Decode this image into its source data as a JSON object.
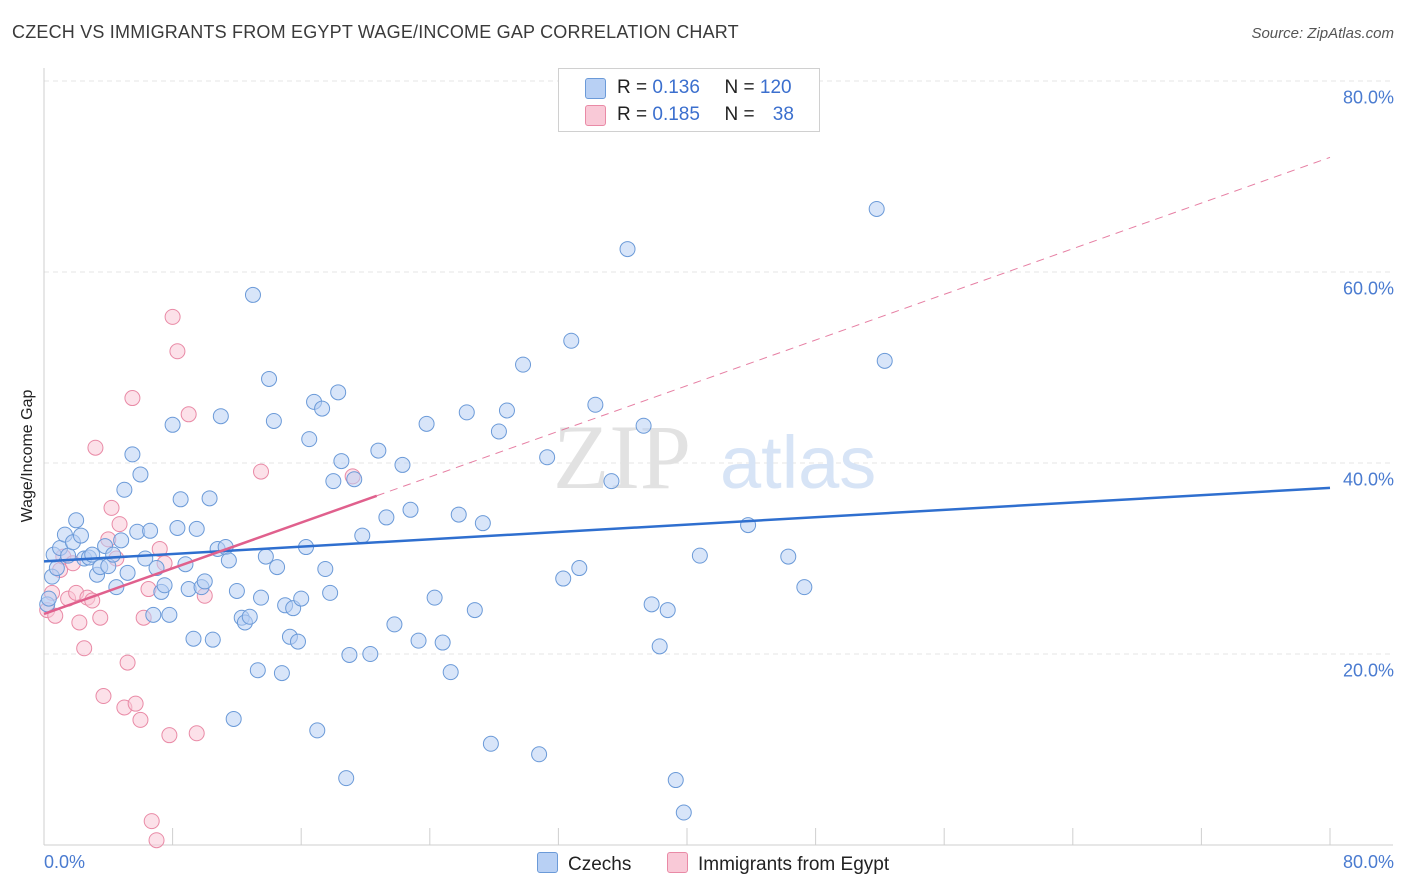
{
  "title": "CZECH VS IMMIGRANTS FROM EGYPT WAGE/INCOME GAP CORRELATION CHART",
  "source": "Source: ZipAtlas.com",
  "colors": {
    "blue_fill": "#b8d0f4",
    "blue_stroke": "#6b9ad8",
    "blue_line": "#2f6fcf",
    "pink_fill": "#f9c9d7",
    "pink_stroke": "#e98aa6",
    "pink_line": "#e0608d",
    "value_text": "#3b6fce",
    "grid": "#e4e4e4"
  },
  "legend": {
    "rows": [
      {
        "r_label": "R =",
        "r_value": "0.136",
        "n_label": "N =",
        "n_value": "120"
      },
      {
        "r_label": "R =",
        "r_value": "0.185",
        "n_label": "N =",
        "n_value": "38"
      }
    ]
  },
  "bottom_legend": [
    "Czechs",
    "Immigrants from Egypt"
  ],
  "watermark": {
    "zip": "ZIP",
    "atlas": "atlas"
  },
  "chart_data": {
    "type": "scatter",
    "title": "CZECH VS IMMIGRANTS FROM EGYPT WAGE/INCOME GAP CORRELATION CHART",
    "xlabel": "",
    "ylabel": "Wage/Income Gap",
    "xlim": [
      0,
      80
    ],
    "ylim": [
      0,
      82
    ],
    "x_tick_labels": [
      "0.0%",
      "80.0%"
    ],
    "y_ticks": [
      20,
      40,
      60,
      80
    ],
    "y_tick_labels": [
      "20.0%",
      "40.0%",
      "60.0%",
      "80.0%"
    ],
    "grid": true,
    "legend_position": "top-center",
    "series": [
      {
        "name": "Czechs",
        "R": 0.136,
        "N": 120,
        "trend": {
          "x": [
            0,
            80
          ],
          "y": [
            29.7,
            37.4
          ]
        },
        "points": [
          [
            0.2,
            25.2
          ],
          [
            0.3,
            25.8
          ],
          [
            0.5,
            28.1
          ],
          [
            0.6,
            30.4
          ],
          [
            0.8,
            29.0
          ],
          [
            1.0,
            31.1
          ],
          [
            1.3,
            32.5
          ],
          [
            1.5,
            30.3
          ],
          [
            1.8,
            31.7
          ],
          [
            2.0,
            34.0
          ],
          [
            2.3,
            32.4
          ],
          [
            2.5,
            30.0
          ],
          [
            2.8,
            30.1
          ],
          [
            3.0,
            30.4
          ],
          [
            3.3,
            28.3
          ],
          [
            3.5,
            29.1
          ],
          [
            3.8,
            31.3
          ],
          [
            4.0,
            29.2
          ],
          [
            4.3,
            30.4
          ],
          [
            4.5,
            27.0
          ],
          [
            4.8,
            31.9
          ],
          [
            5.0,
            37.2
          ],
          [
            5.2,
            28.5
          ],
          [
            5.5,
            40.9
          ],
          [
            5.8,
            32.8
          ],
          [
            6.0,
            38.8
          ],
          [
            6.3,
            30.0
          ],
          [
            6.6,
            32.9
          ],
          [
            6.8,
            24.1
          ],
          [
            7.0,
            29.0
          ],
          [
            7.3,
            26.5
          ],
          [
            7.5,
            27.2
          ],
          [
            7.8,
            24.1
          ],
          [
            8.0,
            44.0
          ],
          [
            8.3,
            33.2
          ],
          [
            8.5,
            36.2
          ],
          [
            8.8,
            29.4
          ],
          [
            9.0,
            26.8
          ],
          [
            9.3,
            21.6
          ],
          [
            9.5,
            33.1
          ],
          [
            9.8,
            27.0
          ],
          [
            10.0,
            27.6
          ],
          [
            10.3,
            36.3
          ],
          [
            10.5,
            21.5
          ],
          [
            10.8,
            31.0
          ],
          [
            11.0,
            44.9
          ],
          [
            11.3,
            31.2
          ],
          [
            11.5,
            29.8
          ],
          [
            11.8,
            13.2
          ],
          [
            12.0,
            26.6
          ],
          [
            12.3,
            23.8
          ],
          [
            12.5,
            23.3
          ],
          [
            12.8,
            23.9
          ],
          [
            13.0,
            57.6
          ],
          [
            13.3,
            18.3
          ],
          [
            13.5,
            25.9
          ],
          [
            13.8,
            30.2
          ],
          [
            14.0,
            48.8
          ],
          [
            14.3,
            44.4
          ],
          [
            14.5,
            29.1
          ],
          [
            14.8,
            18.0
          ],
          [
            15.0,
            25.1
          ],
          [
            15.3,
            21.8
          ],
          [
            15.5,
            24.8
          ],
          [
            15.8,
            21.3
          ],
          [
            16.0,
            25.8
          ],
          [
            16.3,
            31.2
          ],
          [
            16.5,
            42.5
          ],
          [
            16.8,
            46.4
          ],
          [
            17.0,
            12.0
          ],
          [
            17.3,
            45.7
          ],
          [
            17.5,
            28.9
          ],
          [
            17.8,
            26.4
          ],
          [
            18.0,
            38.1
          ],
          [
            18.3,
            47.4
          ],
          [
            18.5,
            40.2
          ],
          [
            18.8,
            7.0
          ],
          [
            19.0,
            19.9
          ],
          [
            19.3,
            38.3
          ],
          [
            19.8,
            32.4
          ],
          [
            20.3,
            20.0
          ],
          [
            20.8,
            41.3
          ],
          [
            21.3,
            34.3
          ],
          [
            21.8,
            23.1
          ],
          [
            22.3,
            39.8
          ],
          [
            22.8,
            35.1
          ],
          [
            23.3,
            21.4
          ],
          [
            23.8,
            44.1
          ],
          [
            24.3,
            25.9
          ],
          [
            24.8,
            21.2
          ],
          [
            25.3,
            18.1
          ],
          [
            25.8,
            34.6
          ],
          [
            26.3,
            45.3
          ],
          [
            26.8,
            24.6
          ],
          [
            27.3,
            33.7
          ],
          [
            27.8,
            10.6
          ],
          [
            28.3,
            43.3
          ],
          [
            28.8,
            45.5
          ],
          [
            29.8,
            50.3
          ],
          [
            30.8,
            9.5
          ],
          [
            31.3,
            40.6
          ],
          [
            32.3,
            27.9
          ],
          [
            32.8,
            52.8
          ],
          [
            33.3,
            29.0
          ],
          [
            34.3,
            46.1
          ],
          [
            35.3,
            38.1
          ],
          [
            36.3,
            62.4
          ],
          [
            37.3,
            43.9
          ],
          [
            37.8,
            25.2
          ],
          [
            38.3,
            20.8
          ],
          [
            38.8,
            24.6
          ],
          [
            39.3,
            6.8
          ],
          [
            39.8,
            3.4
          ],
          [
            40.8,
            30.3
          ],
          [
            43.8,
            33.5
          ],
          [
            46.3,
            30.2
          ],
          [
            47.3,
            27.0
          ],
          [
            51.8,
            66.6
          ],
          [
            52.3,
            50.7
          ]
        ]
      },
      {
        "name": "Immigrants from Egypt",
        "R": 0.185,
        "N": 38,
        "trend": {
          "x": [
            0,
            80
          ],
          "y": [
            24.2,
            72.0
          ]
        },
        "trend_solid_to_x": 20.7,
        "points": [
          [
            0.2,
            24.6
          ],
          [
            0.5,
            26.4
          ],
          [
            0.7,
            24.0
          ],
          [
            1.0,
            28.8
          ],
          [
            1.2,
            30.2
          ],
          [
            1.5,
            25.8
          ],
          [
            1.8,
            29.5
          ],
          [
            2.0,
            26.4
          ],
          [
            2.2,
            23.3
          ],
          [
            2.5,
            20.6
          ],
          [
            2.7,
            25.9
          ],
          [
            3.0,
            25.6
          ],
          [
            3.2,
            41.6
          ],
          [
            3.5,
            23.8
          ],
          [
            3.7,
            15.6
          ],
          [
            4.0,
            32.0
          ],
          [
            4.2,
            35.3
          ],
          [
            4.5,
            30.0
          ],
          [
            4.7,
            33.6
          ],
          [
            5.0,
            14.4
          ],
          [
            5.2,
            19.1
          ],
          [
            5.5,
            46.8
          ],
          [
            5.7,
            14.8
          ],
          [
            6.0,
            13.1
          ],
          [
            6.2,
            23.8
          ],
          [
            6.5,
            26.8
          ],
          [
            6.7,
            2.5
          ],
          [
            7.0,
            0.5
          ],
          [
            7.2,
            31.0
          ],
          [
            7.5,
            29.5
          ],
          [
            7.8,
            11.5
          ],
          [
            8.0,
            55.3
          ],
          [
            8.3,
            51.7
          ],
          [
            9.0,
            45.1
          ],
          [
            9.5,
            11.7
          ],
          [
            10.0,
            26.1
          ],
          [
            13.5,
            39.1
          ],
          [
            19.2,
            38.6
          ]
        ]
      }
    ]
  }
}
